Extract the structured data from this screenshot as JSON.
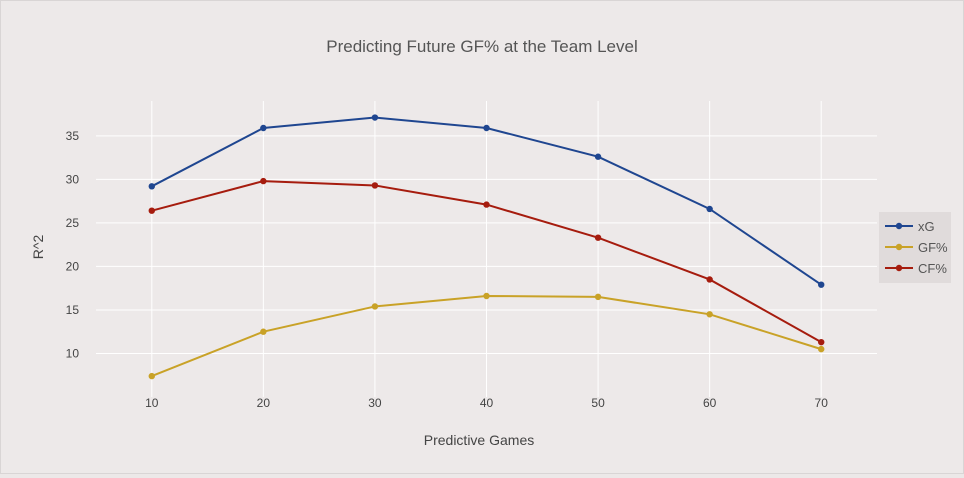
{
  "chart_data": {
    "type": "line",
    "title": "Predicting Future GF% at the Team Level",
    "xlabel": "Predictive Games",
    "ylabel": "R^2",
    "x": [
      10,
      20,
      30,
      40,
      50,
      60,
      70
    ],
    "xlim": [
      5,
      75
    ],
    "ylim": [
      5,
      39
    ],
    "xticks": [
      10,
      20,
      30,
      40,
      50,
      60,
      70
    ],
    "yticks": [
      10,
      15,
      20,
      25,
      30,
      35
    ],
    "grid": true,
    "legend_position": "right",
    "series": [
      {
        "name": "xG",
        "color": "#1f4690",
        "values": [
          29.2,
          35.9,
          37.1,
          35.9,
          32.6,
          26.6,
          17.9
        ]
      },
      {
        "name": "GF%",
        "color": "#c9a227",
        "values": [
          7.4,
          12.5,
          15.4,
          16.6,
          16.5,
          14.5,
          10.5
        ]
      },
      {
        "name": "CF%",
        "color": "#a61c0e",
        "values": [
          26.4,
          29.8,
          29.3,
          27.1,
          23.3,
          18.5,
          11.3
        ]
      }
    ]
  }
}
